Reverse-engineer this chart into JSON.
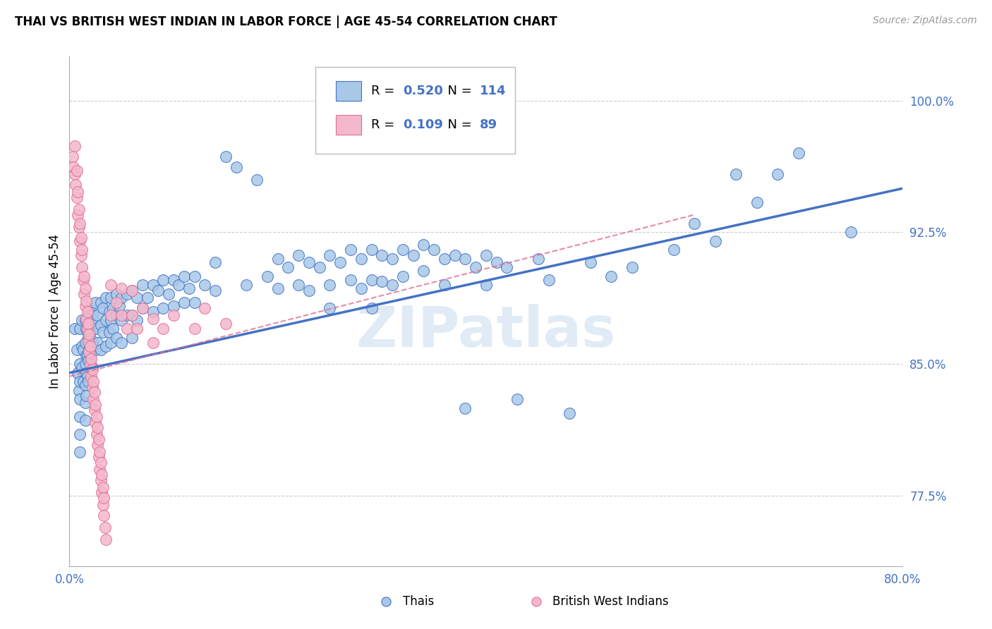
{
  "title": "THAI VS BRITISH WEST INDIAN IN LABOR FORCE | AGE 45-54 CORRELATION CHART",
  "source": "Source: ZipAtlas.com",
  "ylabel": "In Labor Force | Age 45-54",
  "xmin": 0.0,
  "xmax": 0.8,
  "ymin": 0.735,
  "ymax": 1.025,
  "thai_color": "#a8c8e8",
  "thai_color_line": "#4472c4",
  "bwi_color": "#f4b8cc",
  "bwi_color_line": "#e07090",
  "axis_label_color": "#4472c4",
  "grid_color": "#cccccc",
  "watermark": "ZIPatlas",
  "thai_R": "0.520",
  "thai_N": "114",
  "bwi_R": "0.109",
  "bwi_N": "89",
  "ytick_vals": [
    0.775,
    0.85,
    0.925,
    1.0
  ],
  "ytick_labels": [
    "77.5%",
    "85.0%",
    "92.5%",
    "100.0%"
  ],
  "thai_scatter": [
    [
      0.005,
      0.87
    ],
    [
      0.007,
      0.858
    ],
    [
      0.008,
      0.845
    ],
    [
      0.009,
      0.835
    ],
    [
      0.01,
      0.87
    ],
    [
      0.01,
      0.85
    ],
    [
      0.01,
      0.84
    ],
    [
      0.01,
      0.83
    ],
    [
      0.01,
      0.82
    ],
    [
      0.01,
      0.81
    ],
    [
      0.01,
      0.8
    ],
    [
      0.012,
      0.875
    ],
    [
      0.012,
      0.86
    ],
    [
      0.012,
      0.848
    ],
    [
      0.013,
      0.858
    ],
    [
      0.013,
      0.84
    ],
    [
      0.015,
      0.875
    ],
    [
      0.015,
      0.862
    ],
    [
      0.015,
      0.85
    ],
    [
      0.015,
      0.838
    ],
    [
      0.015,
      0.828
    ],
    [
      0.015,
      0.818
    ],
    [
      0.016,
      0.87
    ],
    [
      0.016,
      0.855
    ],
    [
      0.016,
      0.845
    ],
    [
      0.016,
      0.832
    ],
    [
      0.017,
      0.868
    ],
    [
      0.017,
      0.855
    ],
    [
      0.017,
      0.843
    ],
    [
      0.018,
      0.878
    ],
    [
      0.018,
      0.865
    ],
    [
      0.018,
      0.852
    ],
    [
      0.018,
      0.84
    ],
    [
      0.019,
      0.872
    ],
    [
      0.019,
      0.858
    ],
    [
      0.02,
      0.882
    ],
    [
      0.02,
      0.868
    ],
    [
      0.02,
      0.855
    ],
    [
      0.022,
      0.878
    ],
    [
      0.022,
      0.863
    ],
    [
      0.022,
      0.848
    ],
    [
      0.023,
      0.875
    ],
    [
      0.023,
      0.86
    ],
    [
      0.025,
      0.885
    ],
    [
      0.025,
      0.87
    ],
    [
      0.025,
      0.858
    ],
    [
      0.027,
      0.878
    ],
    [
      0.027,
      0.862
    ],
    [
      0.03,
      0.885
    ],
    [
      0.03,
      0.872
    ],
    [
      0.03,
      0.858
    ],
    [
      0.032,
      0.882
    ],
    [
      0.032,
      0.868
    ],
    [
      0.035,
      0.888
    ],
    [
      0.035,
      0.875
    ],
    [
      0.035,
      0.86
    ],
    [
      0.038,
      0.88
    ],
    [
      0.038,
      0.868
    ],
    [
      0.04,
      0.888
    ],
    [
      0.04,
      0.875
    ],
    [
      0.04,
      0.862
    ],
    [
      0.042,
      0.882
    ],
    [
      0.042,
      0.87
    ],
    [
      0.045,
      0.89
    ],
    [
      0.045,
      0.878
    ],
    [
      0.045,
      0.865
    ],
    [
      0.048,
      0.883
    ],
    [
      0.05,
      0.888
    ],
    [
      0.05,
      0.875
    ],
    [
      0.05,
      0.862
    ],
    [
      0.055,
      0.89
    ],
    [
      0.055,
      0.878
    ],
    [
      0.06,
      0.892
    ],
    [
      0.06,
      0.878
    ],
    [
      0.06,
      0.865
    ],
    [
      0.065,
      0.888
    ],
    [
      0.065,
      0.875
    ],
    [
      0.07,
      0.895
    ],
    [
      0.07,
      0.882
    ],
    [
      0.075,
      0.888
    ],
    [
      0.08,
      0.895
    ],
    [
      0.08,
      0.88
    ],
    [
      0.085,
      0.892
    ],
    [
      0.09,
      0.898
    ],
    [
      0.09,
      0.882
    ],
    [
      0.095,
      0.89
    ],
    [
      0.1,
      0.898
    ],
    [
      0.1,
      0.883
    ],
    [
      0.105,
      0.895
    ],
    [
      0.11,
      0.9
    ],
    [
      0.11,
      0.885
    ],
    [
      0.115,
      0.893
    ],
    [
      0.12,
      0.9
    ],
    [
      0.12,
      0.885
    ],
    [
      0.13,
      0.895
    ],
    [
      0.14,
      0.908
    ],
    [
      0.14,
      0.892
    ],
    [
      0.15,
      0.968
    ],
    [
      0.16,
      0.962
    ],
    [
      0.17,
      0.895
    ],
    [
      0.18,
      0.955
    ],
    [
      0.19,
      0.9
    ],
    [
      0.2,
      0.91
    ],
    [
      0.2,
      0.893
    ],
    [
      0.21,
      0.905
    ],
    [
      0.22,
      0.912
    ],
    [
      0.22,
      0.895
    ],
    [
      0.23,
      0.908
    ],
    [
      0.23,
      0.892
    ],
    [
      0.24,
      0.905
    ],
    [
      0.25,
      0.912
    ],
    [
      0.25,
      0.895
    ],
    [
      0.25,
      0.882
    ],
    [
      0.26,
      0.908
    ],
    [
      0.27,
      0.915
    ],
    [
      0.27,
      0.898
    ],
    [
      0.28,
      0.91
    ],
    [
      0.28,
      0.893
    ],
    [
      0.29,
      0.915
    ],
    [
      0.29,
      0.898
    ],
    [
      0.29,
      0.882
    ],
    [
      0.3,
      0.912
    ],
    [
      0.3,
      0.897
    ],
    [
      0.31,
      0.91
    ],
    [
      0.31,
      0.895
    ],
    [
      0.32,
      0.915
    ],
    [
      0.32,
      0.9
    ],
    [
      0.33,
      0.912
    ],
    [
      0.34,
      0.918
    ],
    [
      0.34,
      0.903
    ],
    [
      0.35,
      0.915
    ],
    [
      0.36,
      0.91
    ],
    [
      0.36,
      0.895
    ],
    [
      0.37,
      0.912
    ],
    [
      0.38,
      0.91
    ],
    [
      0.38,
      0.825
    ],
    [
      0.39,
      0.905
    ],
    [
      0.4,
      0.912
    ],
    [
      0.4,
      0.895
    ],
    [
      0.41,
      0.908
    ],
    [
      0.42,
      0.905
    ],
    [
      0.43,
      0.83
    ],
    [
      0.45,
      0.91
    ],
    [
      0.46,
      0.898
    ],
    [
      0.48,
      0.822
    ],
    [
      0.5,
      0.908
    ],
    [
      0.52,
      0.9
    ],
    [
      0.54,
      0.905
    ],
    [
      0.58,
      0.915
    ],
    [
      0.6,
      0.93
    ],
    [
      0.62,
      0.92
    ],
    [
      0.64,
      0.958
    ],
    [
      0.66,
      0.942
    ],
    [
      0.68,
      0.958
    ],
    [
      0.7,
      0.97
    ],
    [
      0.75,
      0.925
    ]
  ],
  "bwi_scatter": [
    [
      0.003,
      0.968
    ],
    [
      0.004,
      0.962
    ],
    [
      0.005,
      0.974
    ],
    [
      0.005,
      0.958
    ],
    [
      0.006,
      0.952
    ],
    [
      0.007,
      0.945
    ],
    [
      0.007,
      0.96
    ],
    [
      0.008,
      0.935
    ],
    [
      0.008,
      0.948
    ],
    [
      0.009,
      0.928
    ],
    [
      0.009,
      0.938
    ],
    [
      0.01,
      0.92
    ],
    [
      0.01,
      0.93
    ],
    [
      0.011,
      0.912
    ],
    [
      0.011,
      0.922
    ],
    [
      0.012,
      0.905
    ],
    [
      0.012,
      0.915
    ],
    [
      0.013,
      0.898
    ],
    [
      0.014,
      0.89
    ],
    [
      0.014,
      0.9
    ],
    [
      0.015,
      0.883
    ],
    [
      0.015,
      0.893
    ],
    [
      0.016,
      0.876
    ],
    [
      0.016,
      0.886
    ],
    [
      0.017,
      0.87
    ],
    [
      0.017,
      0.88
    ],
    [
      0.018,
      0.863
    ],
    [
      0.018,
      0.873
    ],
    [
      0.019,
      0.857
    ],
    [
      0.019,
      0.867
    ],
    [
      0.02,
      0.85
    ],
    [
      0.02,
      0.86
    ],
    [
      0.021,
      0.843
    ],
    [
      0.021,
      0.853
    ],
    [
      0.022,
      0.837
    ],
    [
      0.022,
      0.847
    ],
    [
      0.023,
      0.83
    ],
    [
      0.023,
      0.84
    ],
    [
      0.024,
      0.824
    ],
    [
      0.024,
      0.834
    ],
    [
      0.025,
      0.817
    ],
    [
      0.025,
      0.827
    ],
    [
      0.026,
      0.81
    ],
    [
      0.026,
      0.82
    ],
    [
      0.027,
      0.804
    ],
    [
      0.027,
      0.814
    ],
    [
      0.028,
      0.797
    ],
    [
      0.028,
      0.807
    ],
    [
      0.029,
      0.79
    ],
    [
      0.029,
      0.8
    ],
    [
      0.03,
      0.784
    ],
    [
      0.03,
      0.794
    ],
    [
      0.031,
      0.777
    ],
    [
      0.031,
      0.787
    ],
    [
      0.032,
      0.77
    ],
    [
      0.032,
      0.78
    ],
    [
      0.033,
      0.764
    ],
    [
      0.033,
      0.774
    ],
    [
      0.034,
      0.757
    ],
    [
      0.035,
      0.75
    ],
    [
      0.04,
      0.895
    ],
    [
      0.04,
      0.878
    ],
    [
      0.045,
      0.885
    ],
    [
      0.05,
      0.878
    ],
    [
      0.05,
      0.893
    ],
    [
      0.055,
      0.87
    ],
    [
      0.06,
      0.878
    ],
    [
      0.06,
      0.892
    ],
    [
      0.065,
      0.87
    ],
    [
      0.07,
      0.882
    ],
    [
      0.08,
      0.876
    ],
    [
      0.08,
      0.862
    ],
    [
      0.09,
      0.87
    ],
    [
      0.1,
      0.878
    ],
    [
      0.12,
      0.87
    ],
    [
      0.13,
      0.882
    ],
    [
      0.15,
      0.873
    ]
  ]
}
